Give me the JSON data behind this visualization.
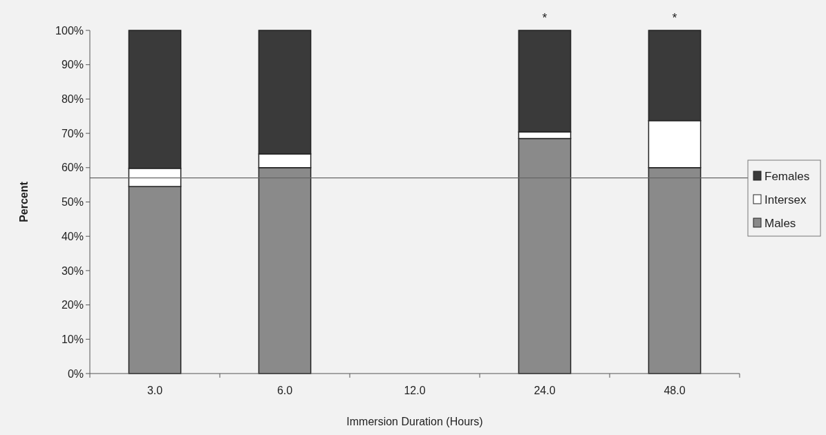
{
  "chart_data": {
    "type": "bar",
    "stacked": true,
    "xlabel": "Immersion Duration (Hours)",
    "ylabel": "Percent",
    "categories": [
      "3.0",
      "6.0",
      "12.0",
      "24.0",
      "48.0"
    ],
    "series": [
      {
        "name": "Males",
        "color": "#8a8a8a",
        "values": [
          54.5,
          60,
          null,
          68.5,
          60
        ]
      },
      {
        "name": "Intersex",
        "color": "#ffffff",
        "values": [
          5.3,
          4,
          null,
          1.9,
          13.7
        ]
      },
      {
        "name": "Females",
        "color": "#3a3a3a",
        "values": [
          40.2,
          36,
          null,
          29.6,
          26.3
        ]
      }
    ],
    "ylim": [
      0,
      100
    ],
    "yticks": [
      {
        "value": 0,
        "label": "0%"
      },
      {
        "value": 10,
        "label": "10%"
      },
      {
        "value": 20,
        "label": "20%"
      },
      {
        "value": 30,
        "label": "30%"
      },
      {
        "value": 40,
        "label": "40%"
      },
      {
        "value": 50,
        "label": "50%"
      },
      {
        "value": 60,
        "label": "60%"
      },
      {
        "value": 70,
        "label": "70%"
      },
      {
        "value": 80,
        "label": "80%"
      },
      {
        "value": 90,
        "label": "90%"
      },
      {
        "value": 100,
        "label": "100%"
      }
    ],
    "ref_lines": [
      {
        "axis": "y",
        "value": 57,
        "color": "#666666"
      }
    ],
    "annotations": [
      {
        "text": "*",
        "x": "24.0",
        "y": 100
      },
      {
        "text": "*",
        "x": "48.0",
        "y": 100
      }
    ],
    "legend": "right"
  }
}
